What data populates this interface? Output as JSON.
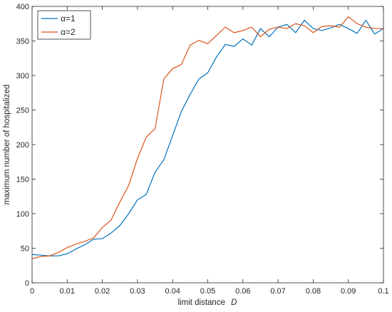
{
  "chart_data": {
    "type": "line",
    "title": "",
    "xlabel": "limit distance",
    "xlabel_symbol": "D",
    "ylabel": "maximum number of hospitalized",
    "xlim": [
      0,
      0.1
    ],
    "ylim": [
      0,
      400
    ],
    "x_ticks": [
      "0",
      "0.01",
      "0.02",
      "0.03",
      "0.04",
      "0.05",
      "0.06",
      "0.07",
      "0.08",
      "0.09",
      "0.1"
    ],
    "y_ticks": [
      "0",
      "50",
      "100",
      "150",
      "200",
      "250",
      "300",
      "350",
      "400"
    ],
    "grid": false,
    "legend_position": "top-left",
    "x": [
      0,
      0.0025,
      0.005,
      0.0075,
      0.01,
      0.0125,
      0.015,
      0.0175,
      0.02,
      0.0225,
      0.025,
      0.0275,
      0.03,
      0.0325,
      0.035,
      0.0375,
      0.04,
      0.0425,
      0.045,
      0.0475,
      0.05,
      0.0525,
      0.055,
      0.0575,
      0.06,
      0.0625,
      0.065,
      0.0675,
      0.07,
      0.0725,
      0.075,
      0.0775,
      0.08,
      0.0825,
      0.085,
      0.0875,
      0.09,
      0.0925,
      0.095,
      0.0975,
      0.1
    ],
    "series": [
      {
        "name": "α=1",
        "color": "#0072BD",
        "values": [
          41,
          40,
          39,
          39,
          42,
          49,
          55,
          63,
          64,
          72,
          83,
          100,
          120,
          128,
          160,
          178,
          213,
          248,
          273,
          295,
          304,
          327,
          345,
          342,
          353,
          344,
          368,
          356,
          370,
          374,
          362,
          380,
          368,
          365,
          369,
          374,
          368,
          361,
          380,
          360,
          368
        ]
      },
      {
        "name": "α=2",
        "color": "#D95319",
        "values": [
          35,
          38,
          39,
          44,
          51,
          56,
          60,
          65,
          80,
          91,
          117,
          141,
          180,
          211,
          223,
          295,
          310,
          316,
          344,
          351,
          346,
          358,
          370,
          362,
          365,
          370,
          356,
          367,
          370,
          368,
          375,
          372,
          362,
          371,
          372,
          370,
          385,
          375,
          370,
          368,
          368
        ]
      }
    ]
  }
}
